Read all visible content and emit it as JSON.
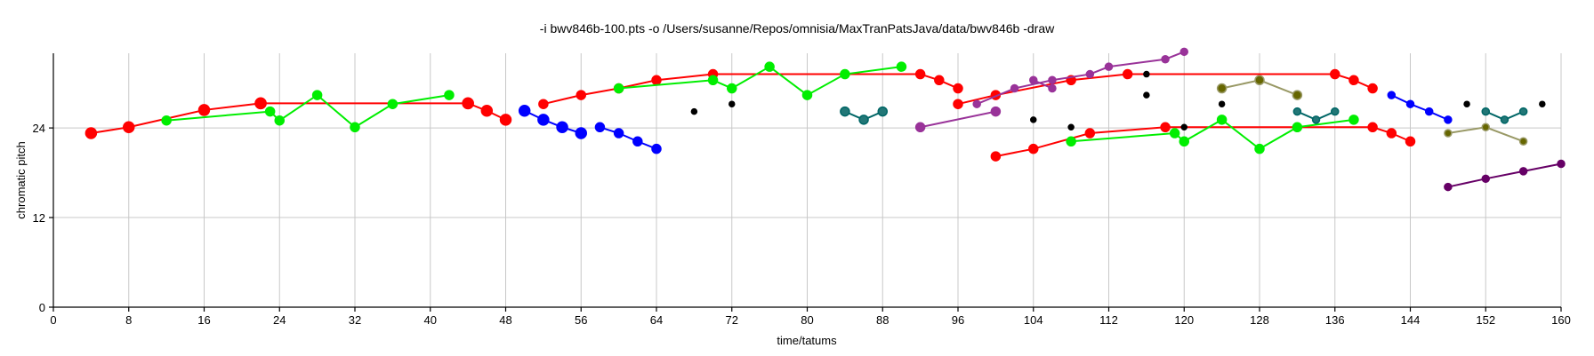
{
  "chart_data": {
    "type": "scatter",
    "title": "-i bwv846b-100.pts -o /Users/susanne/Repos/omnisia/MaxTranPatsJava/data/bwv846b -draw",
    "xlabel": "time/tatums",
    "ylabel": "chromatic pitch",
    "xlim": [
      0,
      160
    ],
    "ylim": [
      0,
      34
    ],
    "xticks": [
      0,
      8,
      16,
      24,
      32,
      40,
      48,
      56,
      64,
      72,
      80,
      88,
      96,
      104,
      112,
      120,
      128,
      136,
      144,
      152,
      160
    ],
    "yticks": [
      0,
      12,
      24
    ],
    "grid": true,
    "colors": {
      "red": "#ff0000",
      "green": "#00ee00",
      "blue": "#0000ff",
      "purple": "#993399",
      "darkpurple": "#660066",
      "teal": "#006666",
      "tealfill": "#227777",
      "olive": "#999966",
      "olivefill": "#666600",
      "black": "#000000"
    },
    "series": [
      {
        "color": "red",
        "line": true,
        "size": 6,
        "points": [
          [
            4,
            23.3
          ],
          [
            8,
            24.1
          ],
          [
            16,
            26.4
          ],
          [
            22,
            27.3
          ],
          [
            44,
            27.3
          ],
          [
            46,
            26.3
          ],
          [
            48,
            25.1
          ]
        ]
      },
      {
        "color": "red",
        "line": false,
        "size": 6,
        "points": [
          [
            22,
            27.3
          ],
          [
            44,
            27.3
          ]
        ]
      },
      {
        "color": "green",
        "line": true,
        "size": 5,
        "points": [
          [
            12,
            25
          ],
          [
            23,
            26.2
          ],
          [
            24,
            25
          ],
          [
            28,
            28.4
          ],
          [
            32,
            24.1
          ],
          [
            36,
            27.2
          ],
          [
            42,
            28.4
          ]
        ]
      },
      {
        "color": "blue",
        "line": true,
        "size": 6,
        "points": [
          [
            50,
            26.3
          ],
          [
            52,
            25.1
          ],
          [
            54,
            24.1
          ],
          [
            56,
            23.3
          ]
        ]
      },
      {
        "color": "blue",
        "line": true,
        "size": 5,
        "points": [
          [
            58,
            24.1
          ],
          [
            60,
            23.3
          ],
          [
            62,
            22.2
          ],
          [
            64,
            21.2
          ]
        ]
      },
      {
        "color": "red",
        "line": true,
        "size": 5,
        "points": [
          [
            52,
            27.2
          ],
          [
            56,
            28.4
          ],
          [
            60,
            29.3
          ],
          [
            64,
            30.4
          ],
          [
            70,
            31.2
          ],
          [
            92,
            31.2
          ],
          [
            94,
            30.4
          ],
          [
            96,
            29.3
          ]
        ]
      },
      {
        "color": "green",
        "line": true,
        "size": 5,
        "points": [
          [
            60,
            29.3
          ],
          [
            70,
            30.4
          ],
          [
            72,
            29.3
          ],
          [
            76,
            32.2
          ],
          [
            80,
            28.4
          ],
          [
            84,
            31.2
          ],
          [
            90,
            32.2
          ]
        ]
      },
      {
        "color": "teal",
        "line": true,
        "size": 5,
        "points": [
          [
            84,
            26.2
          ],
          [
            86,
            25.1
          ],
          [
            88,
            26.2
          ]
        ]
      },
      {
        "color": "purple",
        "line": true,
        "size": 5,
        "points": [
          [
            92,
            24.1
          ],
          [
            100,
            26.2
          ]
        ]
      },
      {
        "color": "red",
        "line": true,
        "size": 5,
        "points": [
          [
            96,
            27.2
          ],
          [
            100,
            28.4
          ],
          [
            108,
            30.4
          ],
          [
            114,
            31.2
          ],
          [
            136,
            31.2
          ],
          [
            138,
            30.4
          ],
          [
            140,
            29.3
          ]
        ]
      },
      {
        "color": "purple",
        "line": true,
        "size": 4,
        "points": [
          [
            98,
            27.2
          ],
          [
            102,
            29.3
          ],
          [
            106,
            30.4
          ],
          [
            110,
            31.2
          ],
          [
            112,
            32.2
          ],
          [
            118,
            33.2
          ],
          [
            120,
            34.2
          ]
        ]
      },
      {
        "color": "purple",
        "line": true,
        "size": 4,
        "points": [
          [
            104,
            30.4
          ],
          [
            106,
            29.3
          ]
        ]
      },
      {
        "color": "red",
        "line": true,
        "size": 5,
        "points": [
          [
            100,
            20.2
          ],
          [
            104,
            21.2
          ],
          [
            110,
            23.3
          ],
          [
            118,
            24.1
          ],
          [
            140,
            24.1
          ],
          [
            142,
            23.3
          ],
          [
            144,
            22.2
          ]
        ]
      },
      {
        "color": "green",
        "line": true,
        "size": 5,
        "points": [
          [
            108,
            22.2
          ],
          [
            119,
            23.3
          ],
          [
            120,
            22.2
          ],
          [
            124,
            25.1
          ],
          [
            128,
            21.2
          ],
          [
            132,
            24.1
          ],
          [
            138,
            25.1
          ]
        ]
      },
      {
        "color": "olive",
        "line": true,
        "size": 5,
        "points": [
          [
            124,
            29.3
          ],
          [
            128,
            30.4
          ],
          [
            132,
            28.4
          ]
        ]
      },
      {
        "color": "teal",
        "line": true,
        "size": 4,
        "points": [
          [
            132,
            26.2
          ],
          [
            134,
            25.1
          ],
          [
            136,
            26.2
          ]
        ]
      },
      {
        "color": "blue",
        "line": true,
        "size": 4,
        "points": [
          [
            142,
            28.4
          ],
          [
            144,
            27.2
          ],
          [
            146,
            26.2
          ],
          [
            148,
            25.1
          ]
        ]
      },
      {
        "color": "olive",
        "line": true,
        "size": 4,
        "points": [
          [
            148,
            23.3
          ],
          [
            152,
            24.1
          ],
          [
            156,
            22.2
          ]
        ]
      },
      {
        "color": "teal",
        "line": true,
        "size": 4,
        "points": [
          [
            152,
            26.2
          ],
          [
            154,
            25.1
          ],
          [
            156,
            26.2
          ]
        ]
      },
      {
        "color": "darkpurple",
        "line": true,
        "size": 4,
        "points": [
          [
            148,
            16.1
          ],
          [
            152,
            17.2
          ],
          [
            156,
            18.2
          ],
          [
            160,
            19.2
          ]
        ]
      },
      {
        "color": "black",
        "line": false,
        "size": 3,
        "points": [
          [
            68,
            26.2
          ],
          [
            72,
            27.2
          ],
          [
            104,
            25.1
          ],
          [
            108,
            24.1
          ],
          [
            116,
            28.4
          ],
          [
            116,
            31.2
          ],
          [
            120,
            24.1
          ],
          [
            124,
            27.2
          ],
          [
            150,
            27.2
          ],
          [
            158,
            27.2
          ]
        ]
      }
    ]
  }
}
